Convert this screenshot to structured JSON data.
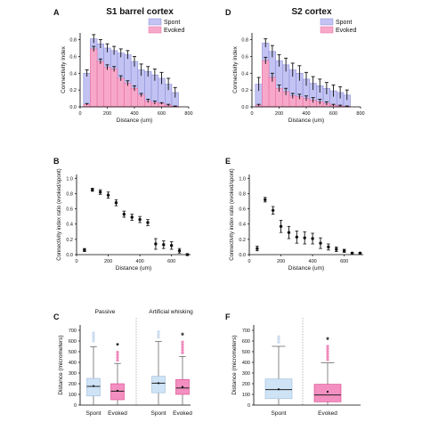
{
  "chart_data": [
    {
      "panel": "A",
      "type": "bar",
      "title": "S1 barrel cortex",
      "xlabel": "Distance (um)",
      "ylabel": "Connectivity index",
      "xticks": [
        0,
        200,
        400,
        600,
        800
      ],
      "yticks": [
        "0.0",
        "0.2",
        "0.4",
        "0.6",
        "0.8"
      ],
      "xlim": [
        0,
        800
      ],
      "ylim": [
        0,
        0.88
      ],
      "legend": "top-right",
      "bin_width": 50,
      "x": [
        50,
        100,
        150,
        200,
        250,
        300,
        350,
        400,
        450,
        500,
        550,
        600,
        650,
        700
      ],
      "series": [
        {
          "name": "Spont",
          "color": "#c2c3f3",
          "values": [
            0.4,
            0.81,
            0.75,
            0.7,
            0.67,
            0.64,
            0.62,
            0.54,
            0.44,
            0.42,
            0.38,
            0.34,
            0.27,
            0.17
          ],
          "errors": [
            0.04,
            0.05,
            0.05,
            0.05,
            0.05,
            0.05,
            0.05,
            0.06,
            0.07,
            0.06,
            0.07,
            0.07,
            0.07,
            0.06
          ]
        },
        {
          "name": "Evoked",
          "color": "#f7a8c9",
          "values": [
            0.03,
            0.69,
            0.54,
            0.47,
            0.45,
            0.34,
            0.28,
            0.22,
            0.14,
            0.07,
            0.05,
            0.04,
            0.02,
            0.005
          ],
          "errors": [
            0.01,
            0.03,
            0.03,
            0.03,
            0.03,
            0.03,
            0.03,
            0.03,
            0.02,
            0.02,
            0.02,
            0.01,
            0.01,
            0.005
          ]
        }
      ]
    },
    {
      "panel": "D",
      "type": "bar",
      "title": "S2 cortex",
      "xlabel": "Distance (um)",
      "ylabel": "Connectivity index",
      "xticks": [
        0,
        200,
        400,
        600,
        800
      ],
      "yticks": [
        "0.0",
        "0.2",
        "0.4",
        "0.6",
        "0.8"
      ],
      "xlim": [
        0,
        800
      ],
      "ylim": [
        0,
        0.88
      ],
      "legend": "top-right",
      "bin_width": 50,
      "x": [
        50,
        100,
        150,
        200,
        250,
        300,
        350,
        400,
        450,
        500,
        550,
        600,
        650,
        700
      ],
      "series": [
        {
          "name": "Spont",
          "color": "#c2c3f3",
          "values": [
            0.27,
            0.76,
            0.66,
            0.55,
            0.5,
            0.44,
            0.4,
            0.33,
            0.28,
            0.25,
            0.22,
            0.19,
            0.17,
            0.14
          ],
          "errors": [
            0.08,
            0.05,
            0.07,
            0.07,
            0.08,
            0.08,
            0.09,
            0.08,
            0.08,
            0.08,
            0.07,
            0.07,
            0.07,
            0.06
          ]
        },
        {
          "name": "Evoked",
          "color": "#f7a8c9",
          "values": [
            0.02,
            0.55,
            0.35,
            0.22,
            0.18,
            0.13,
            0.12,
            0.1,
            0.08,
            0.06,
            0.04,
            0.02,
            0.01,
            0.005
          ],
          "errors": [
            0.01,
            0.04,
            0.05,
            0.04,
            0.04,
            0.03,
            0.03,
            0.03,
            0.03,
            0.03,
            0.02,
            0.01,
            0.01,
            0.005
          ]
        }
      ]
    },
    {
      "panel": "B",
      "type": "scatter",
      "title": "",
      "xlabel": "Distance (um)",
      "ylabel": "Connectivity index ratio (evoked/spont)",
      "xticks": [
        0,
        200,
        400,
        600
      ],
      "yticks": [
        "0.0",
        "0.2",
        "0.4",
        "0.6",
        "0.8",
        "1.0"
      ],
      "xlim": [
        0,
        720
      ],
      "ylim": [
        0,
        1.05
      ],
      "series": [
        {
          "name": "",
          "x": [
            50,
            100,
            150,
            200,
            250,
            300,
            350,
            400,
            450,
            500,
            550,
            600,
            650,
            700
          ],
          "y": [
            0.06,
            0.85,
            0.82,
            0.78,
            0.68,
            0.53,
            0.49,
            0.46,
            0.42,
            0.14,
            0.13,
            0.12,
            0.05,
            0.0
          ],
          "errors": [
            0.02,
            0.02,
            0.03,
            0.04,
            0.04,
            0.04,
            0.04,
            0.04,
            0.04,
            0.07,
            0.05,
            0.05,
            0.03,
            0.01
          ]
        }
      ]
    },
    {
      "panel": "E",
      "type": "scatter",
      "title": "",
      "xlabel": "Distance (um)",
      "ylabel": "Connectivity index ratio (evoked/spont)",
      "xticks": [
        0,
        200,
        400,
        600
      ],
      "yticks": [
        "0.0",
        "0.2",
        "0.4",
        "0.6",
        "0.8",
        "1.0"
      ],
      "xlim": [
        0,
        720
      ],
      "ylim": [
        0,
        1.05
      ],
      "series": [
        {
          "name": "",
          "x": [
            50,
            100,
            150,
            200,
            250,
            300,
            350,
            400,
            450,
            500,
            550,
            600,
            650,
            700
          ],
          "y": [
            0.08,
            0.72,
            0.58,
            0.37,
            0.29,
            0.23,
            0.22,
            0.21,
            0.15,
            0.1,
            0.07,
            0.05,
            0.02,
            0.02
          ],
          "errors": [
            0.03,
            0.03,
            0.05,
            0.08,
            0.08,
            0.08,
            0.08,
            0.07,
            0.07,
            0.04,
            0.03,
            0.02,
            0.01,
            0.01
          ]
        }
      ]
    },
    {
      "panel": "C",
      "type": "box",
      "title": "",
      "group_labels": [
        "Passive",
        "Artificial whisking"
      ],
      "categories": [
        "Spont",
        "Evoked",
        "Spont",
        "Evoked"
      ],
      "ylabel": "Distance (micrometers)",
      "yticks": [
        0,
        100,
        200,
        300,
        400,
        500,
        600,
        700
      ],
      "ylim": [
        0,
        750
      ],
      "boxes": [
        {
          "group": "Passive",
          "condition": "Spont",
          "color": "#cfe3f6",
          "whisker_low": 0,
          "q1": 85,
          "median": 175,
          "q3": 250,
          "whisker_high": 545,
          "mean": 178,
          "outliers": [
            600,
            625,
            650,
            675
          ]
        },
        {
          "group": "Passive",
          "condition": "Evoked",
          "color": "#f38fc1",
          "whisker_low": 0,
          "q1": 50,
          "median": 130,
          "q3": 200,
          "whisker_high": 390,
          "mean": 135,
          "outliers": [
            420,
            445,
            470,
            495
          ],
          "significance": "*"
        },
        {
          "group": "Artificial whisking",
          "condition": "Spont",
          "color": "#cfe3f6",
          "whisker_low": 0,
          "q1": 115,
          "median": 205,
          "q3": 270,
          "whisker_high": 595,
          "mean": 205,
          "outliers": [
            635,
            660,
            685
          ]
        },
        {
          "group": "Artificial whisking",
          "condition": "Evoked",
          "color": "#f38fc1",
          "whisker_low": 0,
          "q1": 100,
          "median": 160,
          "q3": 240,
          "whisker_high": 455,
          "mean": 170,
          "outliers": [
            490,
            515,
            540,
            565,
            590
          ],
          "significance": "*"
        }
      ]
    },
    {
      "panel": "F",
      "type": "box",
      "title": "",
      "categories": [
        "Spont",
        "Evoked"
      ],
      "ylabel": "Distance (micrometers)",
      "yticks": [
        0,
        100,
        200,
        300,
        400,
        500,
        600,
        700
      ],
      "ylim": [
        0,
        750
      ],
      "boxes": [
        {
          "condition": "Spont",
          "color": "#cfe3f6",
          "whisker_low": 0,
          "q1": 60,
          "median": 145,
          "q3": 245,
          "whisker_high": 550,
          "mean": 148,
          "outliers": [
            590,
            615,
            640
          ]
        },
        {
          "condition": "Evoked",
          "color": "#f38fc1",
          "whisker_low": 0,
          "q1": 30,
          "median": 95,
          "q3": 195,
          "whisker_high": 395,
          "mean": 125,
          "outliers": [
            425,
            450,
            475,
            500,
            525,
            550
          ],
          "significance": "*"
        }
      ]
    }
  ]
}
